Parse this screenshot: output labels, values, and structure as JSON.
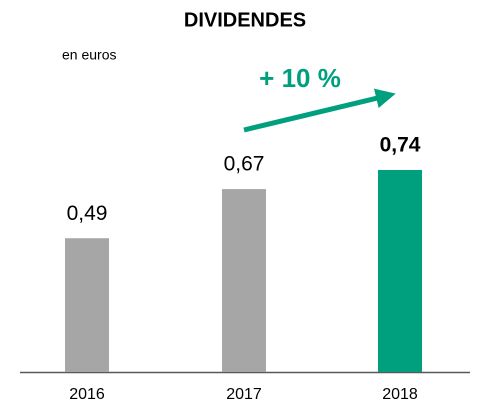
{
  "chart_data": {
    "type": "bar",
    "title": "DIVIDENDES",
    "subtitle": "en euros",
    "annotation": "+ 10 %",
    "categories": [
      "2016",
      "2017",
      "2018"
    ],
    "values": [
      0.49,
      0.67,
      0.74
    ],
    "value_labels": [
      "0,49",
      "0,67",
      "0,74"
    ],
    "colors": [
      "#a6a6a6",
      "#a6a6a6",
      "#00a07e"
    ],
    "bold_labels": [
      false,
      false,
      true
    ]
  }
}
